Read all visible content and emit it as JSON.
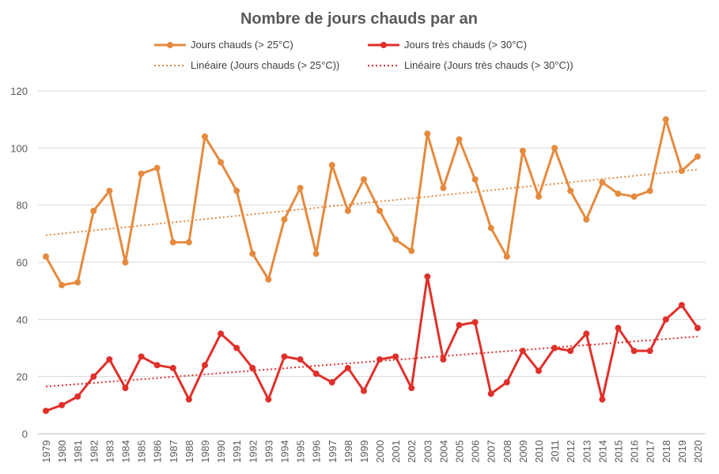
{
  "chart_data": {
    "type": "line",
    "title": "Nombre de jours chauds par an",
    "xlabel": "",
    "ylabel": "",
    "ylim": [
      0,
      120
    ],
    "yticks": [
      0,
      20,
      40,
      60,
      80,
      100,
      120
    ],
    "grid": true,
    "legend_position": "top",
    "categories": [
      "1979",
      "1980",
      "1981",
      "1982",
      "1983",
      "1984",
      "1985",
      "1986",
      "1987",
      "1988",
      "1989",
      "1990",
      "1991",
      "1992",
      "1993",
      "1994",
      "1995",
      "1996",
      "1997",
      "1998",
      "1999",
      "2000",
      "2001",
      "2002",
      "2003",
      "2004",
      "2005",
      "2006",
      "2007",
      "2008",
      "2009",
      "2010",
      "2011",
      "2012",
      "2013",
      "2014",
      "2015",
      "2016",
      "2017",
      "2018",
      "2019",
      "2020"
    ],
    "series": [
      {
        "name": "Jours chauds (> 25°C)",
        "color": "#E58A3E",
        "values": [
          62,
          52,
          53,
          78,
          85,
          60,
          91,
          93,
          67,
          67,
          104,
          95,
          85,
          63,
          54,
          75,
          86,
          63,
          94,
          78,
          89,
          78,
          68,
          64,
          105,
          86,
          103,
          89,
          72,
          62,
          99,
          83,
          100,
          85,
          75,
          88,
          84,
          83,
          85,
          110,
          92,
          97
        ]
      },
      {
        "name": "Jours très chauds (> 30°C)",
        "color": "#E0302A",
        "values": [
          8,
          10,
          13,
          20,
          26,
          16,
          27,
          24,
          23,
          12,
          24,
          35,
          30,
          23,
          12,
          27,
          26,
          21,
          18,
          23,
          15,
          26,
          27,
          16,
          55,
          26,
          38,
          39,
          14,
          18,
          29,
          22,
          30,
          29,
          35,
          12,
          37,
          29,
          29,
          40,
          45,
          37
        ]
      }
    ],
    "trendlines": [
      {
        "name": "Linéaire (Jours chauds (> 25°C))",
        "color": "#E58A3E",
        "start": 69.5,
        "end": 92.5
      },
      {
        "name": "Linéaire (Jours très chauds (> 30°C))",
        "color": "#E0302A",
        "start": 16.5,
        "end": 34
      }
    ]
  }
}
